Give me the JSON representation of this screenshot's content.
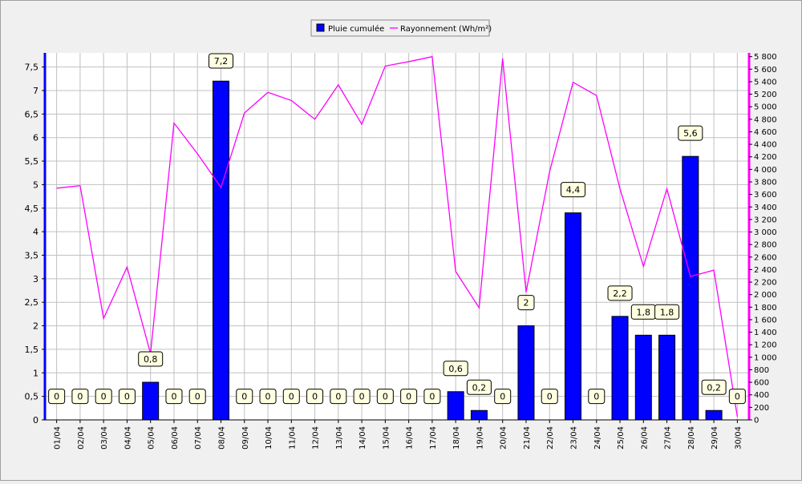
{
  "chart_data": {
    "type": "bar",
    "categories": [
      "01/04",
      "02/04",
      "03/04",
      "04/04",
      "05/04",
      "06/04",
      "07/04",
      "08/04",
      "09/04",
      "10/04",
      "11/04",
      "12/04",
      "13/04",
      "14/04",
      "15/04",
      "16/04",
      "17/04",
      "18/04",
      "19/04",
      "20/04",
      "21/04",
      "22/04",
      "23/04",
      "24/04",
      "25/04",
      "26/04",
      "27/04",
      "28/04",
      "29/04",
      "30/04"
    ],
    "series": [
      {
        "name": "Pluie cumulée",
        "type": "bar",
        "axis": "left",
        "color": "#0000ff",
        "values": [
          0,
          0,
          0,
          0,
          0.8,
          0,
          0,
          7.2,
          0,
          0,
          0,
          0,
          0,
          0,
          0,
          0,
          0,
          0.6,
          0.2,
          0,
          2,
          0,
          4.4,
          0,
          2.2,
          1.8,
          1.8,
          5.6,
          0.2,
          0
        ],
        "labels": [
          "0",
          "0",
          "0",
          "0",
          "0,8",
          "0",
          "0",
          "7,2",
          "0",
          "0",
          "0",
          "0",
          "0",
          "0",
          "0",
          "0",
          "0",
          "0,6",
          "0,2",
          "0",
          "2",
          "0",
          "4,4",
          "0",
          "2,2",
          "1,8",
          "1,8",
          "5,6",
          "0,2",
          "0"
        ]
      },
      {
        "name": "Rayonnement (Wh/m²)",
        "type": "line",
        "axis": "right",
        "color": "#ff00ff",
        "values": [
          3700,
          3740,
          1620,
          2440,
          1060,
          4740,
          4250,
          3710,
          4900,
          5230,
          5100,
          4800,
          5350,
          4720,
          5650,
          5720,
          5800,
          2370,
          1790,
          5770,
          2040,
          3960,
          5390,
          5180,
          3690,
          2450,
          3690,
          2290,
          2390,
          50
        ]
      }
    ],
    "y_left": {
      "min": 0,
      "max": 7.8,
      "ticks": [
        0,
        0.5,
        1,
        1.5,
        2,
        2.5,
        3,
        3.5,
        4,
        4.5,
        5,
        5.5,
        6,
        6.5,
        7,
        7.5
      ],
      "tick_labels": [
        "0",
        "0,5",
        "1",
        "1,5",
        "2",
        "2,5",
        "3",
        "3,5",
        "4",
        "4,5",
        "5",
        "5,5",
        "6",
        "6,5",
        "7",
        "7,5"
      ]
    },
    "y_right": {
      "min": 0,
      "max": 5860,
      "ticks": [
        0,
        200,
        400,
        600,
        800,
        1000,
        1200,
        1400,
        1600,
        1800,
        2000,
        2200,
        2400,
        2600,
        2800,
        3000,
        3200,
        3400,
        3600,
        3800,
        4000,
        4200,
        4400,
        4600,
        4800,
        5000,
        5200,
        5400,
        5600,
        5800
      ],
      "tick_labels": [
        "0",
        "200",
        "400",
        "600",
        "800",
        "1 000",
        "1 200",
        "1 400",
        "1 600",
        "1 800",
        "2 000",
        "2 200",
        "2 400",
        "2 600",
        "2 800",
        "3 000",
        "3 200",
        "3 400",
        "3 600",
        "3 800",
        "4 000",
        "4 200",
        "4 400",
        "4 600",
        "4 800",
        "5 000",
        "5 200",
        "5 400",
        "5 600",
        "5 800"
      ]
    },
    "grid": true,
    "legend_position": "top-center",
    "title": "",
    "xlabel": "",
    "ylabel": ""
  },
  "colors": {
    "background": "#f0f0f0",
    "plot_background": "#ffffff",
    "grid": "#c0c0c0",
    "bar": "#0000ff",
    "line": "#ff00ff",
    "label_box": "#ffffe1"
  }
}
